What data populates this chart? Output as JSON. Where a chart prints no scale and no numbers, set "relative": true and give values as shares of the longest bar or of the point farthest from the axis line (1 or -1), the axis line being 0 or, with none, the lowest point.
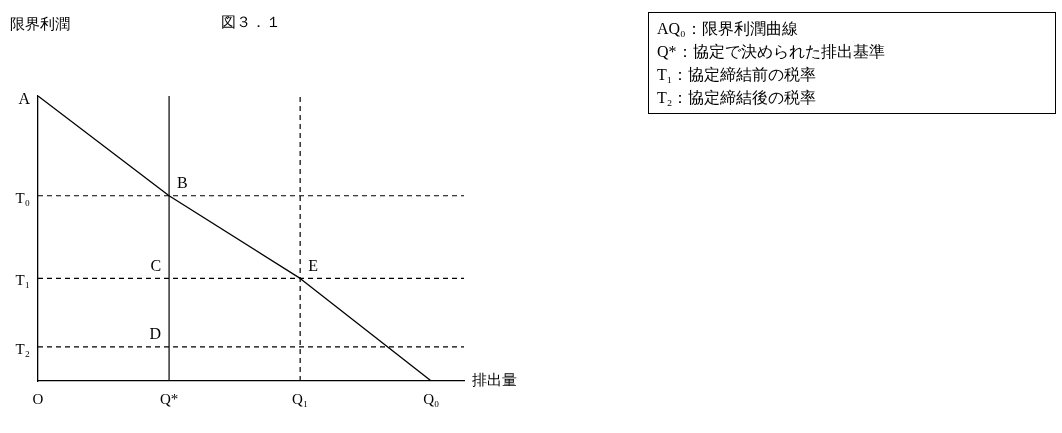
{
  "chart_data": {
    "type": "line",
    "title": "図３．１",
    "xlabel": "排出量",
    "ylabel": "限界利潤",
    "relative": true,
    "categories": [
      "O",
      "Q*",
      "Q₁",
      "Q₀"
    ],
    "series": [
      {
        "color": "#000000",
        "values": [
          1,
          0.65,
          0.36,
          0
        ]
      }
    ],
    "ref_lines": [
      {
        "axis": "y",
        "value": 0.65,
        "label": "T₀",
        "line_style": "dashed"
      },
      {
        "axis": "y",
        "value": 0.36,
        "label": "T₁",
        "line_style": "dashed"
      },
      {
        "axis": "y",
        "value": 0.12,
        "label": "T₂",
        "line_style": "dashed"
      },
      {
        "axis": "x",
        "value": "Q*",
        "line_style": "solid"
      },
      {
        "axis": "x",
        "value": "Q₁",
        "line_style": "dashed"
      }
    ],
    "annotations": [
      {
        "text": "A",
        "x": "O",
        "y": 1
      },
      {
        "text": "B",
        "x": "Q*",
        "y": 0.65
      },
      {
        "text": "C",
        "x": "Q*",
        "y": 0.36
      },
      {
        "text": "D",
        "x": "Q*",
        "y": 0.12
      },
      {
        "text": "E",
        "x": "Q₁",
        "y": 0.36
      },
      "AQ₀：限界利潤曲線",
      "Q*：協定で決められた排出基準",
      "T₁：協定締結前の税率",
      "T₂：協定締結後の税率"
    ],
    "grid": false,
    "legend": false,
    "marker": "none",
    "line_style": "solid"
  }
}
